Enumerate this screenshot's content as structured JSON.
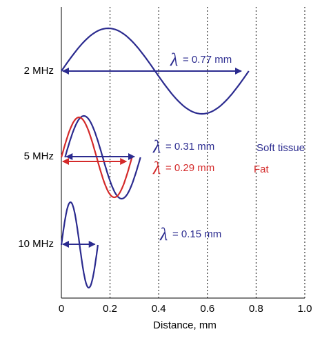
{
  "chart_data": {
    "type": "line",
    "title": "",
    "xlabel": "Distance, mm",
    "ylabel": "",
    "xlim": [
      0,
      1.0
    ],
    "x_ticks": [
      "0",
      "0.2",
      "0.4",
      "0.6",
      "0.8",
      "1.0"
    ],
    "grid": true,
    "series": [
      {
        "name": "2 MHz",
        "row_label": "2 MHz",
        "wavelength_mm": 0.77,
        "lambda_text": "= 0.77 mm",
        "medium": "Soft tissue",
        "color": "#2b2b8f"
      },
      {
        "name": "5 MHz",
        "row_label": "5 MHz",
        "wavelength_mm": 0.31,
        "lambda_text": "= 0.31 mm",
        "medium": "Soft tissue",
        "medium_label": "Soft tissue",
        "color": "#2b2b8f"
      },
      {
        "name": "5 MHz",
        "row_label": "",
        "wavelength_mm": 0.29,
        "lambda_text": "= 0.29 mm",
        "medium": "Fat",
        "medium_label": "Fat",
        "color": "#d42a2a"
      },
      {
        "name": "10 MHz",
        "row_label": "10 MHz",
        "wavelength_mm": 0.15,
        "lambda_text": "= 0.15 mm",
        "medium": "Soft tissue",
        "color": "#2b2b8f"
      }
    ],
    "lambda_symbol": "λ"
  },
  "colors": {
    "soft_tissue": "#2b2b8f",
    "fat": "#d42a2a",
    "axis": "#000000",
    "grid": "#000000"
  }
}
